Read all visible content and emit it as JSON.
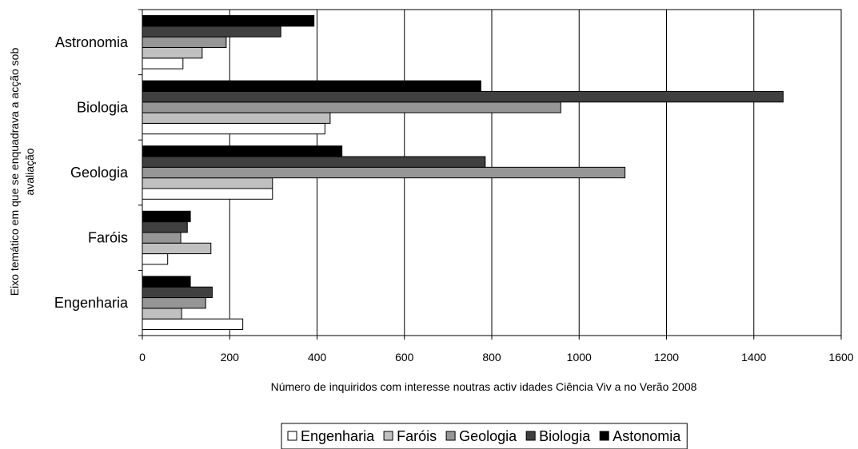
{
  "chart_data": {
    "type": "bar",
    "orientation": "horizontal",
    "categories": [
      "Engenharia",
      "Faróis",
      "Geologia",
      "Biologia",
      "Astronomia"
    ],
    "series": [
      {
        "name": "Engenharia",
        "values": [
          230,
          58,
          298,
          418,
          93
        ]
      },
      {
        "name": "Faróis",
        "values": [
          90,
          157,
          298,
          430,
          137
        ]
      },
      {
        "name": "Geologia",
        "values": [
          145,
          88,
          1105,
          958,
          192
        ]
      },
      {
        "name": "Biologia",
        "values": [
          160,
          103,
          785,
          1467,
          317
        ]
      },
      {
        "name": "Astonomia",
        "values": [
          110,
          110,
          457,
          775,
          393
        ]
      }
    ],
    "series_colors": [
      "#ffffff",
      "#c0c0c0",
      "#969696",
      "#404040",
      "#000000"
    ],
    "xlabel": "Número de inquiridos com interesse noutras activ idades Ciência Viv a no Verão 2008",
    "ylabel": "Eixo temático em que se enquadrava a acção sob avaliação",
    "ylabel_lines": [
      "Eixo temático em que se enquadrava a acção sob",
      "avaliação"
    ],
    "xlim": [
      0,
      1600
    ],
    "x_ticks": [
      0,
      200,
      400,
      600,
      800,
      1000,
      1200,
      1400,
      1600
    ],
    "grid": "vertical",
    "legend": "bottom"
  }
}
